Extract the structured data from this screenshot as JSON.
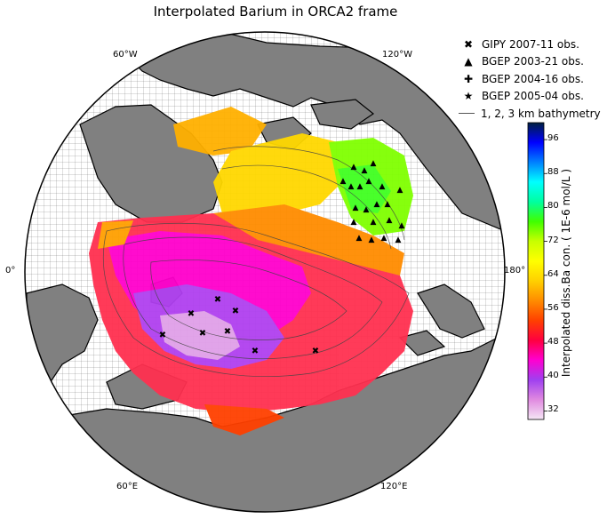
{
  "title": "Interpolated Barium in ORCA2 frame",
  "longitude_labels": [
    "60°W",
    "120°W",
    "0°",
    "180°",
    "60°E",
    "120°E"
  ],
  "legend": [
    {
      "symbol": "✖",
      "icon": "x-marker-icon",
      "label": "GIPY  2007-11 obs."
    },
    {
      "symbol": "▲",
      "icon": "triangle-marker-icon",
      "label": "BGEP 2003-21 obs."
    },
    {
      "symbol": "✚",
      "icon": "plus-marker-icon",
      "label": "BGEP 2004-16 obs."
    },
    {
      "symbol": "★",
      "icon": "star-marker-icon",
      "label": "BGEP 2005-04 obs."
    },
    {
      "symbol": "",
      "icon": "bathymetry-line-icon",
      "label": "1, 2, 3 km bathymetry"
    }
  ],
  "colorbar": {
    "label": "Interpolated diss.Ba con. ( 1E-6 mol/L )",
    "ticks": [
      "96",
      "88",
      "80",
      "72",
      "64",
      "56",
      "48",
      "40",
      "32"
    ],
    "range": [
      30,
      100
    ],
    "colors": [
      "#f5e6f5",
      "#e08ae0",
      "#a040f0",
      "#ff00d0",
      "#ff0040",
      "#ff4000",
      "#ff8c00",
      "#ffd000",
      "#ffff00",
      "#c8ff00",
      "#40ff00",
      "#00ffa0",
      "#00ffff",
      "#0080ff",
      "#0000ff",
      "#002040"
    ]
  },
  "colors": {
    "land": "#808080",
    "ocean": "#ffffff",
    "grid": "#000000"
  }
}
